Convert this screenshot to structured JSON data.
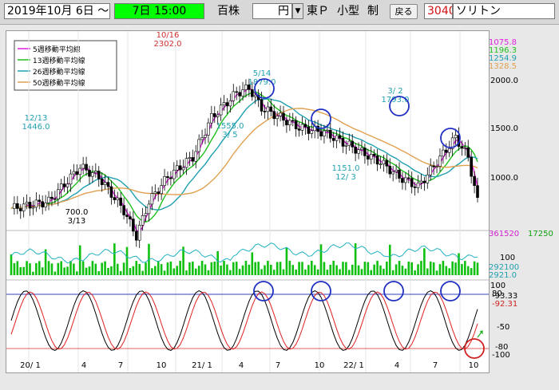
{
  "toolbar": {
    "date": "2019年10月 6日 ～",
    "period_value": "7日 15:00",
    "unit_label": "百株",
    "yen_label": "円",
    "exchange_label": "東Ｐ",
    "size_label": "小型",
    "seido_label": "制",
    "back_label": "戻る",
    "code": "3040",
    "name": "ソリトン"
  },
  "legend": {
    "items": [
      {
        "label": "5週移動平均線",
        "color": "#e020e0"
      },
      {
        "label": "13週移動平均線",
        "color": "#20c020"
      },
      {
        "label": "26週移動平均線",
        "color": "#20a0b0"
      },
      {
        "label": "50週移動平均線",
        "color": "#e0a050"
      }
    ]
  },
  "ma_values": [
    {
      "value": "1075.8",
      "color": "#e020e0"
    },
    {
      "value": "1196.3",
      "color": "#20c020"
    },
    {
      "value": "1254.9",
      "color": "#20a0b0"
    },
    {
      "value": "1328.5",
      "color": "#e0a050"
    }
  ],
  "price_axis": [
    "2000.0",
    "1500.0",
    "1000.0"
  ],
  "annotations": [
    {
      "top": "12/13",
      "bottom": "1446.0",
      "color": "#20a0b0"
    },
    {
      "top": "10/16",
      "bottom": "2302.0",
      "color": "#d03030"
    },
    {
      "top": "5/14",
      "bottom": "1879.0",
      "color": "#20a0b0"
    },
    {
      "top": "1555.0",
      "bottom": "3/ 5",
      "color": "#20a0b0"
    },
    {
      "top": "3/ 2",
      "bottom": "1793.0",
      "color": "#20a0b0"
    },
    {
      "top": "1151.0",
      "bottom": "12/ 3",
      "color": "#20a0b0"
    },
    {
      "top": "700.0",
      "bottom": "3/13",
      "color": "#000000"
    }
  ],
  "volume": {
    "right_value": "361520",
    "right_value2": "17250",
    "axis_100": "100",
    "axis_a": "292100",
    "axis_b": "2921.0"
  },
  "stoch": {
    "axis_top": [
      "100",
      "80"
    ],
    "value1": "-93.33",
    "value2": "-92.31",
    "axis_bottom": [
      "-50",
      "-80",
      "-100"
    ],
    "question": "?"
  },
  "x_axis": [
    "20/ 1",
    "4",
    "7",
    "10",
    "21/ 1",
    "4",
    "7",
    "10",
    "22/ 1",
    "4",
    "7",
    "10"
  ]
}
